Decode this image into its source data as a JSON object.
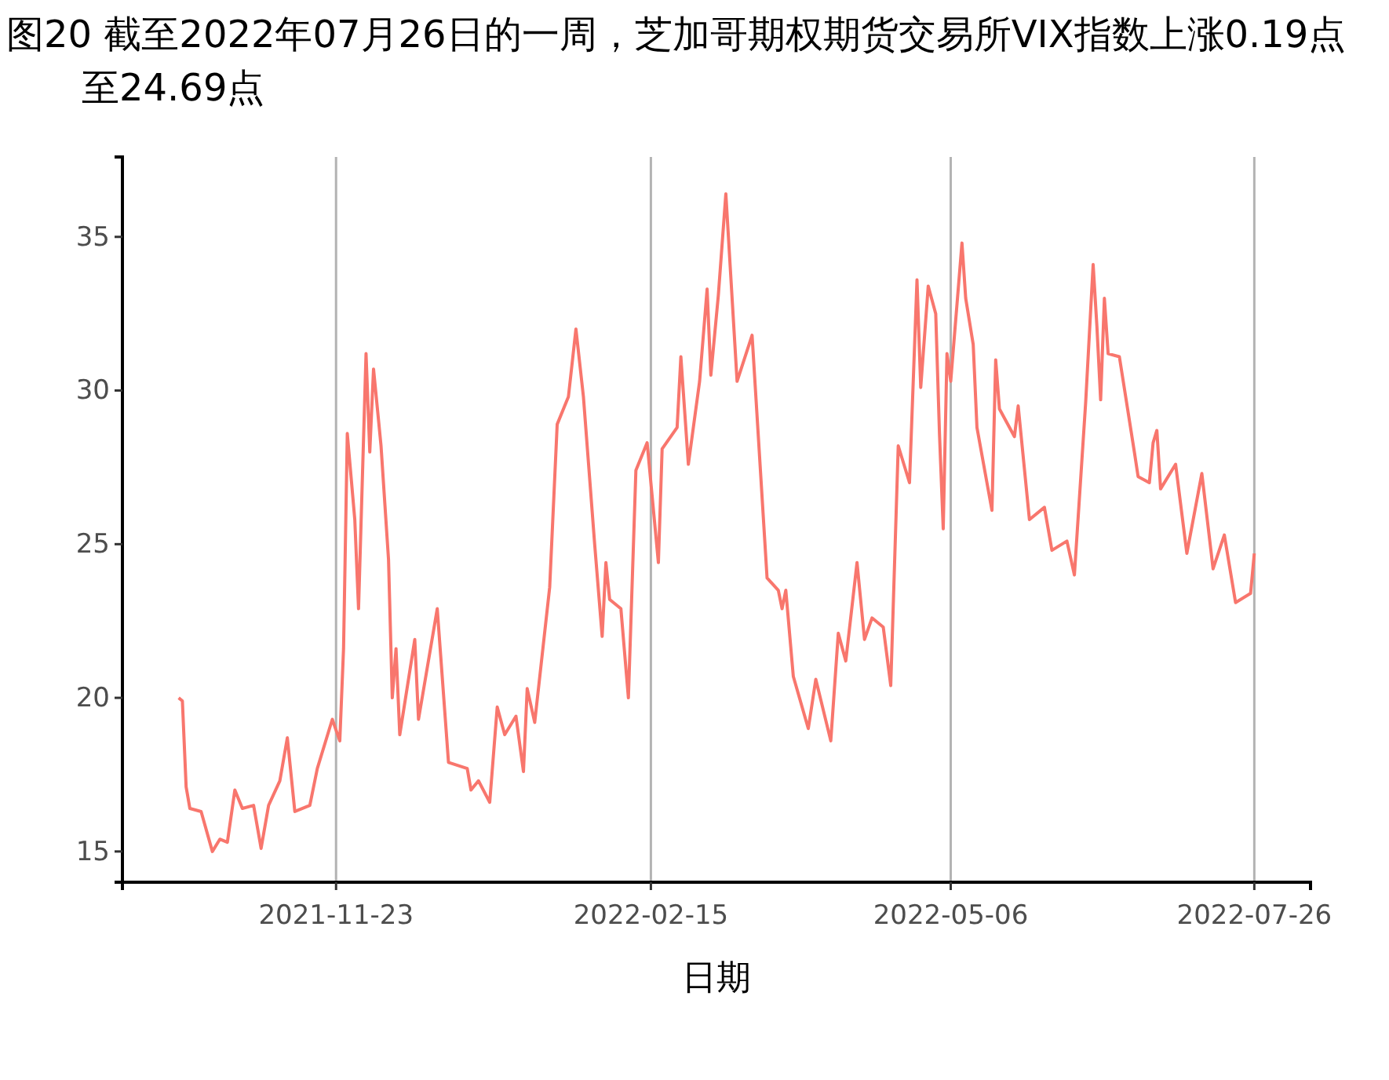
{
  "chart_data": {
    "type": "line",
    "title": "图20  截至2022年07月26日的一周，芝加哥期权期货交易所VIX指数上涨0.19点至24.69点",
    "xlabel": "日期",
    "xlim": [
      "2021-09-27",
      "2022-08-10"
    ],
    "xticks": [
      "2021-11-23",
      "2022-02-15",
      "2022-05-06",
      "2022-07-26"
    ],
    "ylim": [
      14,
      37.6
    ],
    "yticks": [
      15,
      20,
      25,
      30,
      35
    ],
    "grid": "x",
    "series": [
      {
        "color": "#f8766d",
        "x": [
          "2021-10-12",
          "2021-10-13",
          "2021-10-14",
          "2021-10-15",
          "2021-10-18",
          "2021-10-21",
          "2021-10-23",
          "2021-10-25",
          "2021-10-27",
          "2021-10-29",
          "2021-11-01",
          "2021-11-03",
          "2021-11-05",
          "2021-11-08",
          "2021-11-10",
          "2021-11-12",
          "2021-11-16",
          "2021-11-18",
          "2021-11-22",
          "2021-11-24",
          "2021-11-25",
          "2021-11-26",
          "2021-11-28",
          "2021-11-29",
          "2021-12-01",
          "2021-12-02",
          "2021-12-03",
          "2021-12-05",
          "2021-12-07",
          "2021-12-08",
          "2021-12-09",
          "2021-12-10",
          "2021-12-14",
          "2021-12-15",
          "2021-12-20",
          "2021-12-23",
          "2021-12-28",
          "2021-12-29",
          "2021-12-31",
          "2022-01-03",
          "2022-01-05",
          "2022-01-07",
          "2022-01-10",
          "2022-01-12",
          "2022-01-13",
          "2022-01-15",
          "2022-01-19",
          "2022-01-21",
          "2022-01-24",
          "2022-01-26",
          "2022-01-28",
          "2022-01-31",
          "2022-02-02",
          "2022-02-03",
          "2022-02-04",
          "2022-02-07",
          "2022-02-09",
          "2022-02-11",
          "2022-02-14",
          "2022-02-17",
          "2022-02-18",
          "2022-02-22",
          "2022-02-23",
          "2022-02-25",
          "2022-02-28",
          "2022-03-02",
          "2022-03-03",
          "2022-03-05",
          "2022-03-07",
          "2022-03-10",
          "2022-03-14",
          "2022-03-18",
          "2022-03-21",
          "2022-03-22",
          "2022-03-23",
          "2022-03-25",
          "2022-03-29",
          "2022-03-31",
          "2022-04-04",
          "2022-04-06",
          "2022-04-08",
          "2022-04-11",
          "2022-04-13",
          "2022-04-15",
          "2022-04-18",
          "2022-04-20",
          "2022-04-22",
          "2022-04-25",
          "2022-04-27",
          "2022-04-28",
          "2022-04-30",
          "2022-05-02",
          "2022-05-03",
          "2022-05-04",
          "2022-05-05",
          "2022-05-06",
          "2022-05-09",
          "2022-05-10",
          "2022-05-12",
          "2022-05-13",
          "2022-05-17",
          "2022-05-18",
          "2022-05-19",
          "2022-05-23",
          "2022-05-24",
          "2022-05-27",
          "2022-05-31",
          "2022-06-02",
          "2022-06-06",
          "2022-06-08",
          "2022-06-11",
          "2022-06-13",
          "2022-06-14",
          "2022-06-15",
          "2022-06-16",
          "2022-06-17",
          "2022-06-20",
          "2022-06-24",
          "2022-06-25",
          "2022-06-28",
          "2022-06-29",
          "2022-06-30",
          "2022-07-01",
          "2022-07-05",
          "2022-07-08",
          "2022-07-12",
          "2022-07-15",
          "2022-07-18",
          "2022-07-21",
          "2022-07-25",
          "2022-07-26"
        ],
        "values": [
          20.0,
          19.9,
          17.1,
          16.4,
          16.3,
          15.0,
          15.4,
          15.3,
          17.0,
          16.4,
          16.5,
          15.1,
          16.5,
          17.3,
          18.7,
          16.3,
          16.5,
          17.7,
          19.3,
          18.6,
          21.6,
          28.6,
          25.8,
          22.9,
          31.2,
          28.0,
          30.7,
          28.2,
          24.5,
          20.0,
          21.6,
          18.8,
          21.9,
          19.3,
          22.9,
          17.9,
          17.7,
          17.0,
          17.3,
          16.6,
          19.7,
          18.8,
          19.4,
          17.6,
          20.3,
          19.2,
          23.6,
          28.9,
          29.8,
          32.0,
          29.8,
          25.0,
          22.0,
          24.4,
          23.2,
          22.9,
          20.0,
          27.4,
          28.3,
          24.4,
          28.1,
          28.8,
          31.1,
          27.6,
          30.3,
          33.3,
          30.5,
          33.1,
          36.4,
          30.3,
          31.8,
          23.9,
          23.5,
          22.9,
          23.5,
          20.7,
          19.0,
          20.6,
          18.6,
          22.1,
          21.2,
          24.4,
          21.9,
          22.6,
          22.3,
          20.4,
          28.2,
          27.0,
          33.6,
          30.1,
          33.4,
          32.5,
          28.6,
          25.5,
          31.2,
          30.3,
          34.8,
          33.0,
          31.5,
          28.8,
          26.1,
          31.0,
          29.4,
          28.5,
          29.5,
          25.8,
          26.2,
          24.8,
          25.1,
          24.0,
          29.6,
          34.1,
          32.1,
          29.7,
          33.0,
          31.2,
          31.1,
          28.0,
          27.2,
          27.0,
          28.3,
          28.7,
          26.8,
          27.6,
          24.7,
          27.3,
          24.2,
          25.3,
          23.1,
          23.4,
          24.7
        ]
      }
    ]
  }
}
